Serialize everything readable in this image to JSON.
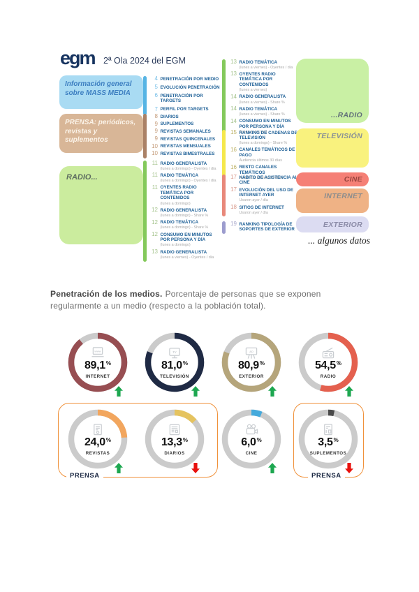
{
  "header": {
    "logo_text": "egm",
    "title": "2ª Ola 2024 del EGM"
  },
  "toc": {
    "groups": [
      {
        "id": "mass-media",
        "box_label": "Información general sobre MASS MEDIA",
        "box_color": "#A9DBF3",
        "box_text_color": "#3D7FC1",
        "bar_color": "#56B4E4",
        "num_color": "#76BFE8",
        "items": [
          {
            "num": "4",
            "label": "PENETRACIÓN POR MEDIO"
          },
          {
            "num": "5",
            "label": "EVOLUCIÓN PENETRACIÓN"
          },
          {
            "num": "6",
            "label": "PENETRACIÓN POR TARGETS"
          },
          {
            "num": "7",
            "label": "PERFIL POR TARGETS"
          }
        ]
      },
      {
        "id": "prensa",
        "box_label": "PRENSA: periódicos, revistas y suplementos",
        "box_color": "#D8B697",
        "box_text_color": "#FBF3E8",
        "bar_color": "#AA8166",
        "num_color": "#C49B79",
        "items": [
          {
            "num": "8",
            "label": "DIARIOS"
          },
          {
            "num": "9",
            "label": "SUPLEMENTOS"
          },
          {
            "num": "9",
            "label": "REVISTAS SEMANALES"
          },
          {
            "num": "9",
            "label": "REVISTAS QUINCENALES"
          },
          {
            "num": "10",
            "label": "REVISTAS MENSUALES"
          },
          {
            "num": "10",
            "label": "REVISTAS BIMESTRALES"
          }
        ]
      },
      {
        "id": "radio-lunes-domingo",
        "box_label": "RADIO...",
        "box_color": "#CBEC9E",
        "box_text_color": "#5E6E60",
        "bar_color": "#84C95B",
        "num_color": "#A6C48E",
        "items": [
          {
            "num": "11",
            "label": "RADIO GENERALISTA",
            "sub": "(lunes a domingo) - Oyentes / día"
          },
          {
            "num": "11",
            "label": "RADIO TEMÁTICA",
            "sub": "(lunes a domingo) - Oyentes / día"
          },
          {
            "num": "11",
            "label": "OYENTES RADIO TEMÁTICA POR CONTENIDOS",
            "sub": "(lunes a domingo)"
          },
          {
            "num": "12",
            "label": "RADIO GENERALISTA",
            "sub": "(lunes a domingo) - Share %"
          },
          {
            "num": "12",
            "label": "RADIO TEMÁTICA",
            "sub": "(lunes a domingo) - Share %"
          },
          {
            "num": "12",
            "label": "CONSUMO EN MINUTOS POR PERSONA Y DÍA",
            "sub": "(lunes a domingo)"
          },
          {
            "num": "13",
            "label": "RADIO GENERALISTA",
            "sub": "(lunes a viernes) - Oyentes / día"
          }
        ]
      },
      {
        "id": "radio-lunes-viernes",
        "bar_color": "#84C95B",
        "num_color": "#A6C48E",
        "items": [
          {
            "num": "13",
            "label": "RADIO TEMÁTICA",
            "sub": "(lunes a viernes) - Oyentes / día"
          },
          {
            "num": "13",
            "label": "OYENTES RADIO TEMÁTICA POR CONTENIDOS",
            "sub": "(lunes a viernes)"
          },
          {
            "num": "14",
            "label": "RADIO GENERALISTA",
            "sub": "(lunes a viernes) - Share %"
          },
          {
            "num": "14",
            "label": "RADIO TEMÁTICA",
            "sub": "(lunes a viernes) - Share %"
          },
          {
            "num": "14",
            "label": "CONSUMO EN MINUTOS POR PERSONA Y DÍA",
            "sub": "(lunes a viernes)"
          }
        ]
      },
      {
        "id": "television",
        "bar_color": "#F5E84B",
        "num_color": "#BFB46A",
        "items": [
          {
            "num": "15",
            "label": "RANKING DE CADENAS DE TELEVISIÓN",
            "sub": "(lunes a domingo) - Share %"
          },
          {
            "num": "16",
            "label": "CANALES TEMÁTICOS DE PAGO",
            "sub": "Audiencia últimos 30 días"
          },
          {
            "num": "16",
            "label": "RESTO CANALES TEMÁTICOS",
            "sub": "Audiencia últimos 30 días"
          }
        ]
      },
      {
        "id": "cine-internet",
        "bar_color": "#E8887A",
        "num_color": "#D79A8C",
        "items": [
          {
            "num": "17",
            "label": "HÁBITO DE ASISTENCIA AL CINE"
          },
          {
            "num": "17",
            "label": "EVOLUCIÓN DEL USO DE INTERNET AYER",
            "sub": "Usaron ayer / día"
          },
          {
            "num": "18",
            "label": "SITIOS DE INTERNET",
            "sub": "Usaron ayer / día"
          }
        ]
      },
      {
        "id": "exterior",
        "bar_color": "#9C9CCE",
        "num_color": "#A9A9CC",
        "items": [
          {
            "num": "19",
            "label": "RANKING TIPOLOGÍA DE SOPORTES DE EXTERIOR"
          }
        ]
      }
    ],
    "right_boxes": [
      {
        "label": "...RADIO",
        "color": "#C9F0A4",
        "label_color": "#62707A",
        "align": "bottom"
      },
      {
        "label": "TELEVISIÓN",
        "color": "#F9F27E",
        "label_color": "#8A9296",
        "align": "top"
      },
      {
        "label": "CINE",
        "color": "#F58076",
        "label_color": "#99453E",
        "align": "middle"
      },
      {
        "label": "INTERNET",
        "color": "#EFB285",
        "label_color": "#8D8D8D",
        "align": "top"
      },
      {
        "label": "EXTERIOR",
        "color": "#DCDCF2",
        "label_color": "#8C8CA8",
        "align": "middle"
      }
    ],
    "footer_note": "... algunos datos"
  },
  "section": {
    "heading_bold": "Penetración de los medios.",
    "heading_rest": "Porcentaje de personas que se exponen regularmente a un medio (respecto a la población total)."
  },
  "chart_data": {
    "type": "pie",
    "variant": "donut-grid",
    "title": "Penetración de los medios",
    "unit": "%",
    "track_color": "#CBCBCB",
    "trend_up_color": "#1DA750",
    "trend_down_color": "#E8100C",
    "group_border_color": "#F0913A",
    "items": [
      {
        "label": "INTERNET",
        "value": 89.1,
        "display": "89,1",
        "color": "#974E52",
        "trend": "up",
        "icon": "laptop-www"
      },
      {
        "label": "TELEVISIÓN",
        "value": 81.0,
        "display": "81,0",
        "color": "#1F2A44",
        "trend": "up",
        "icon": "tv"
      },
      {
        "label": "EXTERIOR",
        "value": 80.9,
        "display": "80,9",
        "color": "#B5A57B",
        "trend": "up",
        "icon": "billboard"
      },
      {
        "label": "RADIO",
        "value": 54.5,
        "display": "54,5",
        "color": "#E4604E",
        "trend": "up",
        "icon": "radio"
      },
      {
        "label": "REVISTAS",
        "value": 24.0,
        "display": "24,0",
        "color": "#F2A65E",
        "trend": "up",
        "icon": "magazine"
      },
      {
        "label": "DIARIOS",
        "value": 13.3,
        "display": "13,3",
        "color": "#E5C35F",
        "trend": "down",
        "icon": "newspaper"
      },
      {
        "label": "CINE",
        "value": 6.0,
        "display": "6,0",
        "color": "#45AADC",
        "trend": "up",
        "icon": "film-camera"
      },
      {
        "label": "SUPLEMENTOS",
        "value": 3.5,
        "display": "3,5",
        "color": "#4A4A4A",
        "trend": "down",
        "icon": "supplement"
      }
    ],
    "groups": [
      {
        "label": "PRENSA",
        "members": [
          "REVISTAS",
          "DIARIOS"
        ]
      },
      {
        "label": "PRENSA",
        "members": [
          "SUPLEMENTOS"
        ]
      }
    ]
  }
}
